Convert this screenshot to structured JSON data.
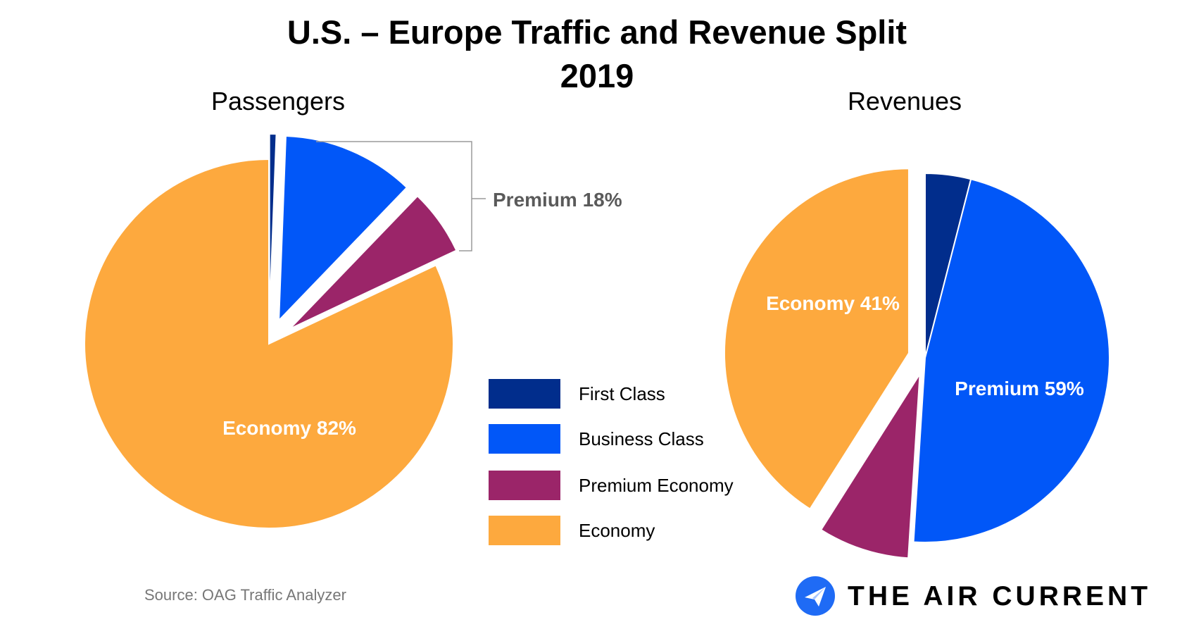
{
  "title": {
    "line1": "U.S. – Europe Traffic and Revenue Split",
    "line2": "2019"
  },
  "colors": {
    "first_class": "#012D8C",
    "business_class": "#0157F8",
    "premium_economy": "#9B2569",
    "economy": "#FDA93E",
    "callout_line": "#9a9a9a"
  },
  "chart_data": [
    {
      "type": "pie",
      "title": "Passengers",
      "series": [
        {
          "name": "First Class",
          "value": 0.6
        },
        {
          "name": "Business Class",
          "value": 11.6
        },
        {
          "name": "Premium Economy",
          "value": 5.8
        },
        {
          "name": "Economy",
          "value": 82.0
        }
      ],
      "labels": {
        "economy": "Economy 82%",
        "premium": "Premium 18%"
      }
    },
    {
      "type": "pie",
      "title": "Revenues",
      "series": [
        {
          "name": "First Class",
          "value": 4.0
        },
        {
          "name": "Business Class",
          "value": 47.0
        },
        {
          "name": "Premium Economy",
          "value": 8.0
        },
        {
          "name": "Economy",
          "value": 41.0
        }
      ],
      "labels": {
        "economy": "Economy 41%",
        "premium": "Premium 59%"
      }
    }
  ],
  "legend": [
    {
      "label": "First Class",
      "color": "#012D8C"
    },
    {
      "label": "Business Class",
      "color": "#0157F8"
    },
    {
      "label": "Premium Economy",
      "color": "#9B2569"
    },
    {
      "label": "Economy",
      "color": "#FDA93E"
    }
  ],
  "footer": {
    "source": "Source: OAG Traffic Analyzer",
    "brand": "THE AIR CURRENT",
    "brand_logo": "paper-plane-icon"
  }
}
